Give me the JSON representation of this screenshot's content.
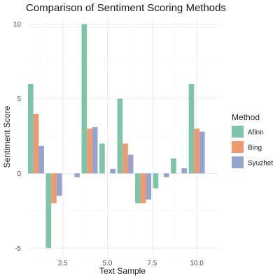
{
  "chart_data": {
    "type": "bar",
    "title": "Comparison of Sentiment Scoring Methods",
    "xlabel": "Text Sample",
    "ylabel": "Sentiment Score",
    "x": [
      1,
      2,
      3,
      4,
      5,
      6,
      7,
      8,
      9,
      10
    ],
    "xlim": [
      0.55,
      11.25
    ],
    "ylim": [
      -5.5,
      10.4
    ],
    "x_ticks": [
      2.5,
      5.0,
      7.5,
      10.0
    ],
    "x_tick_labels": [
      "2.5",
      "5.0",
      "7.5",
      "10.0"
    ],
    "y_ticks": [
      -5,
      0,
      5,
      10
    ],
    "y_tick_labels": [
      "-5",
      "0",
      "5",
      "10"
    ],
    "grid": true,
    "legend": {
      "title": "Method",
      "position": "right"
    },
    "series": [
      {
        "name": "Afinn",
        "color": "#7ec4a8",
        "values": [
          6,
          -5,
          0,
          10,
          2,
          5,
          -2,
          -1,
          1,
          6
        ]
      },
      {
        "name": "Bing",
        "color": "#ee9a70",
        "values": [
          4,
          -2,
          0,
          3,
          0,
          2,
          -2,
          0,
          0,
          3
        ]
      },
      {
        "name": "Syuzhet",
        "color": "#95a3cd",
        "values": [
          1.85,
          -1.5,
          -0.25,
          3.1,
          0.3,
          1.25,
          -1.75,
          -0.25,
          0.35,
          2.8
        ]
      }
    ]
  }
}
